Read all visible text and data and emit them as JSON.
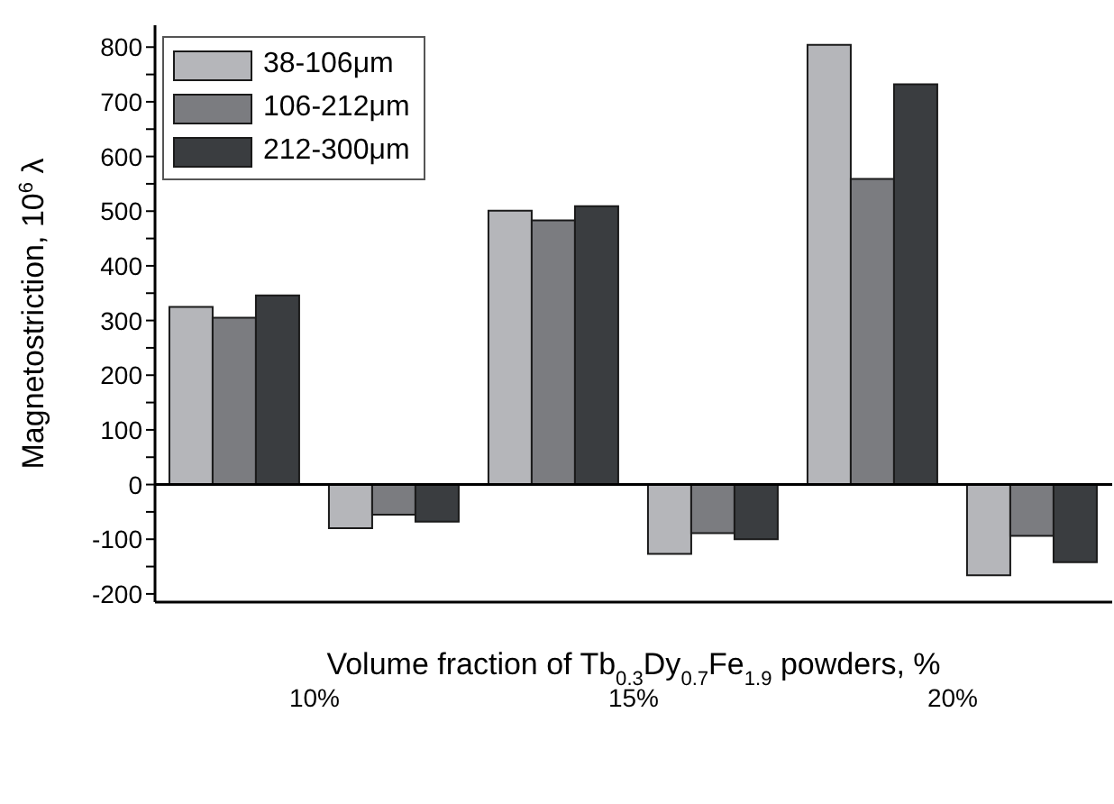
{
  "chart_data": {
    "type": "bar",
    "xlabel": "Volume fraction of Tb$_{0.3}$Dy$_{0.7}$Fe$_{1.9}$ powders, %",
    "ylabel": "Magnetostriction, 10$^{6}$ λ",
    "categories": [
      null,
      null,
      null,
      null,
      null,
      null
    ],
    "series": [
      {
        "name": "38-106μm",
        "color": "#b5b6ba",
        "values": [
          325,
          -80,
          501,
          -127,
          804,
          -166
        ]
      },
      {
        "name": "106-212μm",
        "color": "#7b7c80",
        "values": [
          305,
          -55,
          483,
          -89,
          559,
          -94
        ]
      },
      {
        "name": "212-300μm",
        "color": "#3a3d40",
        "values": [
          346,
          -68,
          509,
          -100,
          732,
          -142
        ]
      }
    ],
    "ylim": [
      -215,
      840
    ],
    "yticks": [
      -200,
      {
        "value": -150,
        "label": null
      },
      -100,
      {
        "value": -50,
        "label": null
      },
      0,
      {
        "value": 50,
        "label": null
      },
      100,
      {
        "value": 150,
        "label": null
      },
      200,
      {
        "value": 250,
        "label": null
      },
      300,
      {
        "value": 350,
        "label": null
      },
      400,
      {
        "value": 450,
        "label": null
      },
      500,
      {
        "value": 550,
        "label": null
      },
      600,
      {
        "value": 650,
        "label": null
      },
      700,
      {
        "value": 750,
        "label": null
      },
      800
    ],
    "ref_lines": [
      {
        "axis": "y",
        "value": 0,
        "color": "#000000"
      }
    ],
    "annotations": [
      "10%",
      "15%",
      "20%"
    ],
    "tick_labels": "y",
    "legend": "top left",
    "grid": false
  }
}
